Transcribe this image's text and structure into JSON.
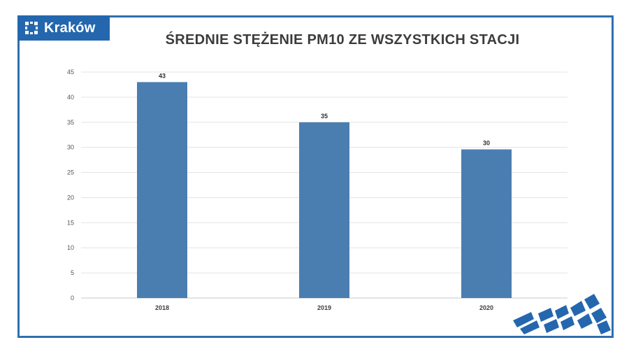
{
  "brand": {
    "name": "Kraków",
    "icon": "krakow-logo-icon",
    "color": "#2467ae"
  },
  "colors": {
    "bar": "#4a7eb0",
    "frame": "#2f6fb0",
    "grid": "#e3e3e3"
  },
  "chart_data": {
    "type": "bar",
    "title": "ŚREDNIE STĘŻENIE PM10 ZE WSZYSTKICH STACJI",
    "categories": [
      "2018",
      "2019",
      "2020"
    ],
    "values": [
      43,
      35,
      29.6
    ],
    "data_labels": [
      "43",
      "35",
      "30"
    ],
    "yticks": [
      0,
      5,
      10,
      15,
      20,
      25,
      30,
      35,
      40,
      45
    ],
    "ylim": [
      0,
      45
    ],
    "xlabel": "",
    "ylabel": "",
    "grid": true,
    "legend": "none"
  }
}
